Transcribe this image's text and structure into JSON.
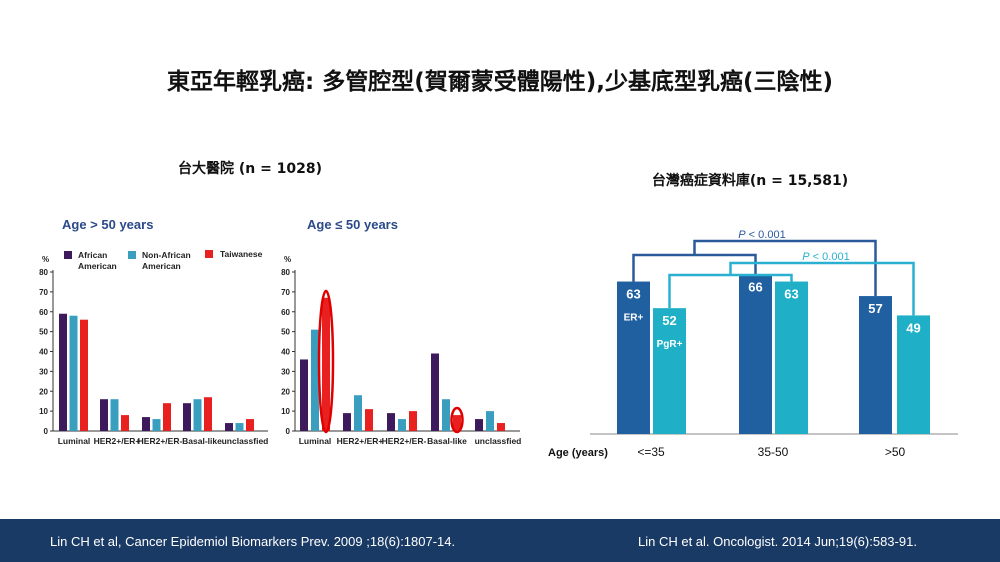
{
  "title": "東亞年輕乳癌: 多管腔型(賀爾蒙受體陽性),少基底型乳癌(三陰性)",
  "left_section": {
    "subtitle": "台大醫院 (n = 1028)"
  },
  "right_section": {
    "subtitle": "台灣癌症資料庫(n = 15,581)"
  },
  "citations": {
    "left": "Lin CH et al, Cancer Epidemiol Biomarkers Prev. 2009 ;18(6):1807-14.",
    "right": "Lin CH et al. Oncologist. 2014 Jun;19(6):583-91."
  },
  "colors": {
    "african_american": "#3d1a5b",
    "non_african_american": "#3a9fbf",
    "taiwanese": "#e82020",
    "er": "#2060a0",
    "pgr": "#1fb0c8",
    "footer": "#1a3a66",
    "highlight": "#e00000"
  },
  "chart_data": [
    {
      "type": "bar",
      "title": "Age > 50 years",
      "ylabel": "%",
      "ylim": [
        0,
        80
      ],
      "yticks": [
        "0",
        "10",
        "20",
        "30",
        "40",
        "50",
        "60",
        "70",
        "80"
      ],
      "categories": [
        "Luminal",
        "HER2+/ER+",
        "HER2+/ER-",
        "Basal-like",
        "unclassfied"
      ],
      "legend": [
        "African American",
        "Non-African American",
        "Taiwanese"
      ],
      "series": [
        {
          "name": "African American",
          "values": [
            59,
            16,
            7,
            14,
            4
          ]
        },
        {
          "name": "Non-African American",
          "values": [
            58,
            16,
            6,
            16,
            4
          ]
        },
        {
          "name": "Taiwanese",
          "values": [
            56,
            8,
            14,
            17,
            6
          ]
        }
      ]
    },
    {
      "type": "bar",
      "title": "Age ≤ 50 years",
      "ylabel": "%",
      "ylim": [
        0,
        80
      ],
      "yticks": [
        "0",
        "10",
        "20",
        "30",
        "40",
        "50",
        "60",
        "70",
        "80"
      ],
      "categories": [
        "Luminal",
        "HER2+/ER+",
        "HER2+/ER-",
        "Basal-like",
        "unclassfied"
      ],
      "series": [
        {
          "values": [
            36,
            9,
            9,
            39,
            6
          ]
        },
        {
          "values": [
            51,
            18,
            6,
            16,
            10
          ]
        },
        {
          "values": [
            67,
            11,
            10,
            8,
            4
          ]
        }
      ],
      "highlights": [
        "Luminal",
        "Basal-like"
      ]
    },
    {
      "type": "bar",
      "xlabel": "Age (years)",
      "categories": [
        "<=35",
        "35-50",
        ">50"
      ],
      "series": [
        {
          "name": "ER+",
          "values": [
            63,
            66,
            57
          ]
        },
        {
          "name": "PgR+",
          "values": [
            52,
            63,
            49
          ]
        }
      ],
      "value_labels": {
        "er": [
          "63",
          "66",
          "57"
        ],
        "pgr": [
          "52",
          "63",
          "49"
        ]
      },
      "annotations": [
        "P < 0.001",
        "P < 0.001"
      ]
    }
  ]
}
